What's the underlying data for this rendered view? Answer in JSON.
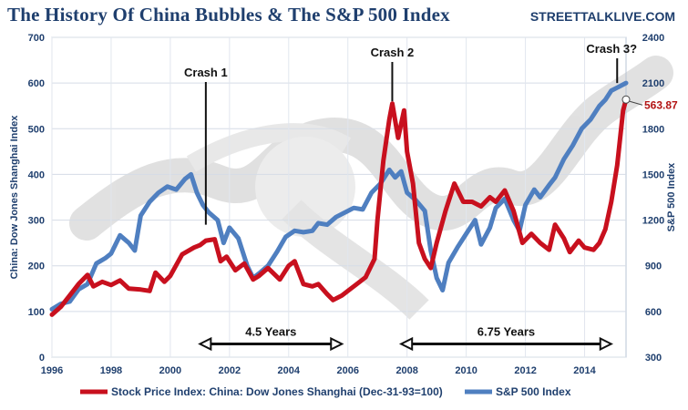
{
  "header": {
    "title": "The History Of China Bubbles & The S&P 500 Index",
    "site": "STREETTALKLIVE.COM"
  },
  "chart_data": {
    "type": "line",
    "title": "The History Of China Bubbles & The S&P 500 Index",
    "xlabel": "",
    "ylabel_left": "China: Dow Jones Shanghai Index",
    "ylabel_right": "S&P 500 Index",
    "xlim": [
      1996,
      2015.4
    ],
    "ylim_left": [
      0,
      700
    ],
    "ylim_right": [
      300,
      2400
    ],
    "x_ticks": [
      "1996",
      "1998",
      "2000",
      "2002",
      "2004",
      "2006",
      "2008",
      "2010",
      "2012",
      "2014"
    ],
    "y_ticks_left": [
      "0",
      "100",
      "200",
      "300",
      "400",
      "500",
      "600",
      "700"
    ],
    "y_ticks_right": [
      "300",
      "600",
      "900",
      "1200",
      "1500",
      "1800",
      "2100",
      "2400"
    ],
    "grid": true,
    "legend_position": "bottom",
    "series": [
      {
        "name": "Stock Price Index: China: Dow Jones Shanghai (Dec-31-93=100)",
        "axis": "left",
        "color": "#c8101e",
        "points": [
          [
            1996.0,
            93
          ],
          [
            1996.3,
            110
          ],
          [
            1996.6,
            135
          ],
          [
            1996.9,
            160
          ],
          [
            1997.2,
            180
          ],
          [
            1997.4,
            155
          ],
          [
            1997.7,
            165
          ],
          [
            1998.0,
            158
          ],
          [
            1998.3,
            168
          ],
          [
            1998.6,
            150
          ],
          [
            1999.0,
            148
          ],
          [
            1999.3,
            145
          ],
          [
            1999.5,
            185
          ],
          [
            1999.8,
            165
          ],
          [
            2000.0,
            178
          ],
          [
            2000.4,
            225
          ],
          [
            2000.8,
            240
          ],
          [
            2001.0,
            245
          ],
          [
            2001.2,
            255
          ],
          [
            2001.5,
            258
          ],
          [
            2001.7,
            210
          ],
          [
            2001.9,
            220
          ],
          [
            2002.2,
            190
          ],
          [
            2002.5,
            205
          ],
          [
            2002.8,
            170
          ],
          [
            2003.0,
            178
          ],
          [
            2003.3,
            195
          ],
          [
            2003.7,
            170
          ],
          [
            2004.0,
            200
          ],
          [
            2004.2,
            210
          ],
          [
            2004.5,
            160
          ],
          [
            2004.8,
            155
          ],
          [
            2005.0,
            160
          ],
          [
            2005.3,
            138
          ],
          [
            2005.5,
            125
          ],
          [
            2005.8,
            135
          ],
          [
            2006.0,
            145
          ],
          [
            2006.3,
            160
          ],
          [
            2006.6,
            175
          ],
          [
            2006.9,
            215
          ],
          [
            2007.0,
            300
          ],
          [
            2007.2,
            430
          ],
          [
            2007.4,
            520
          ],
          [
            2007.5,
            555
          ],
          [
            2007.7,
            480
          ],
          [
            2007.9,
            540
          ],
          [
            2008.0,
            450
          ],
          [
            2008.2,
            380
          ],
          [
            2008.4,
            250
          ],
          [
            2008.6,
            215
          ],
          [
            2008.8,
            195
          ],
          [
            2009.0,
            250
          ],
          [
            2009.3,
            320
          ],
          [
            2009.6,
            380
          ],
          [
            2009.9,
            340
          ],
          [
            2010.2,
            340
          ],
          [
            2010.5,
            330
          ],
          [
            2010.8,
            350
          ],
          [
            2011.0,
            340
          ],
          [
            2011.3,
            365
          ],
          [
            2011.6,
            320
          ],
          [
            2011.9,
            250
          ],
          [
            2012.2,
            270
          ],
          [
            2012.5,
            250
          ],
          [
            2012.8,
            235
          ],
          [
            2013.0,
            290
          ],
          [
            2013.3,
            260
          ],
          [
            2013.5,
            230
          ],
          [
            2013.8,
            255
          ],
          [
            2014.0,
            240
          ],
          [
            2014.3,
            235
          ],
          [
            2014.5,
            250
          ],
          [
            2014.7,
            280
          ],
          [
            2014.9,
            340
          ],
          [
            2015.1,
            420
          ],
          [
            2015.3,
            540
          ],
          [
            2015.4,
            563.87
          ]
        ]
      },
      {
        "name": "S&P 500 Index",
        "axis": "right",
        "color": "#4f7fc0",
        "points": [
          [
            1996.0,
            615
          ],
          [
            1996.3,
            650
          ],
          [
            1996.6,
            665
          ],
          [
            1996.9,
            745
          ],
          [
            1997.2,
            780
          ],
          [
            1997.5,
            915
          ],
          [
            1997.8,
            950
          ],
          [
            1998.0,
            980
          ],
          [
            1998.3,
            1100
          ],
          [
            1998.6,
            1050
          ],
          [
            1998.8,
            1000
          ],
          [
            1999.0,
            1230
          ],
          [
            1999.3,
            1320
          ],
          [
            1999.6,
            1380
          ],
          [
            1999.9,
            1420
          ],
          [
            2000.2,
            1400
          ],
          [
            2000.5,
            1470
          ],
          [
            2000.7,
            1500
          ],
          [
            2000.9,
            1380
          ],
          [
            2001.1,
            1300
          ],
          [
            2001.3,
            1250
          ],
          [
            2001.6,
            1200
          ],
          [
            2001.8,
            1050
          ],
          [
            2002.0,
            1150
          ],
          [
            2002.3,
            1080
          ],
          [
            2002.6,
            900
          ],
          [
            2002.8,
            820
          ],
          [
            2003.0,
            850
          ],
          [
            2003.3,
            900
          ],
          [
            2003.6,
            990
          ],
          [
            2003.9,
            1090
          ],
          [
            2004.2,
            1130
          ],
          [
            2004.5,
            1120
          ],
          [
            2004.8,
            1130
          ],
          [
            2005.0,
            1180
          ],
          [
            2005.3,
            1170
          ],
          [
            2005.6,
            1220
          ],
          [
            2005.9,
            1250
          ],
          [
            2006.2,
            1280
          ],
          [
            2006.5,
            1270
          ],
          [
            2006.8,
            1380
          ],
          [
            2007.1,
            1440
          ],
          [
            2007.4,
            1530
          ],
          [
            2007.6,
            1480
          ],
          [
            2007.8,
            1520
          ],
          [
            2008.0,
            1380
          ],
          [
            2008.3,
            1330
          ],
          [
            2008.6,
            1260
          ],
          [
            2008.8,
            1000
          ],
          [
            2009.0,
            820
          ],
          [
            2009.2,
            740
          ],
          [
            2009.4,
            920
          ],
          [
            2009.7,
            1020
          ],
          [
            2010.0,
            1110
          ],
          [
            2010.3,
            1200
          ],
          [
            2010.5,
            1040
          ],
          [
            2010.8,
            1150
          ],
          [
            2011.0,
            1280
          ],
          [
            2011.3,
            1340
          ],
          [
            2011.6,
            1200
          ],
          [
            2011.8,
            1130
          ],
          [
            2012.0,
            1300
          ],
          [
            2012.3,
            1400
          ],
          [
            2012.5,
            1350
          ],
          [
            2012.8,
            1430
          ],
          [
            2013.0,
            1480
          ],
          [
            2013.3,
            1600
          ],
          [
            2013.6,
            1690
          ],
          [
            2013.9,
            1800
          ],
          [
            2014.2,
            1860
          ],
          [
            2014.5,
            1950
          ],
          [
            2014.7,
            1990
          ],
          [
            2014.9,
            2050
          ],
          [
            2015.1,
            2070
          ],
          [
            2015.4,
            2100
          ]
        ]
      }
    ],
    "annotations": [
      {
        "text": "Crash 1",
        "x": 2001.2,
        "y_left": 290
      },
      {
        "text": "Crash 2",
        "x": 2007.5,
        "y_left": 560
      },
      {
        "text": "Crash 3?",
        "x": 2015.1,
        "y_left": 600
      },
      {
        "text": "4.5 Years",
        "from": 2001.0,
        "to": 2005.8,
        "y_left": 25
      },
      {
        "text": "6.75 Years",
        "from": 2007.8,
        "to": 2014.9,
        "y_left": 25
      }
    ],
    "end_value_label": "563.87"
  }
}
